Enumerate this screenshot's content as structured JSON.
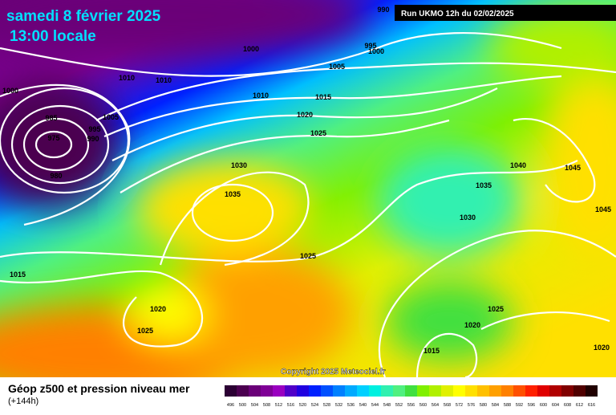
{
  "header": {
    "date": "samedi 8 février 2025",
    "time": "13:00 locale",
    "run": "Run UKMO 12h du 02/02/2025"
  },
  "copyright": "Copyright 2025 Meteociel.fr",
  "footer": {
    "title": "Géop z500 et pression niveau mer",
    "lead": "(+144h)"
  },
  "isobar_labels": [
    990,
    995,
    1000,
    1000,
    1005,
    1010,
    1010,
    1000,
    1010,
    1015,
    985,
    1005,
    1020,
    995,
    975,
    990,
    1025,
    980,
    1030,
    1040,
    1045,
    1035,
    1035,
    1045,
    1030,
    1025,
    1015,
    1020,
    1025,
    1020,
    1025,
    1015,
    1020
  ],
  "scale": {
    "values": [
      496,
      500,
      504,
      508,
      512,
      516,
      520,
      524,
      528,
      532,
      536,
      540,
      544,
      548,
      552,
      556,
      560,
      564,
      568,
      572,
      576,
      580,
      584,
      588,
      592,
      596,
      600,
      604,
      608,
      612,
      616
    ],
    "colors": [
      "#2b0033",
      "#4b0050",
      "#6a0078",
      "#7f0096",
      "#9a00c0",
      "#5000c8",
      "#2000e0",
      "#0020ff",
      "#0050ff",
      "#0080ff",
      "#00aaff",
      "#00d0ff",
      "#00f0e0",
      "#30f0b0",
      "#50f080",
      "#40e040",
      "#80f000",
      "#b0f000",
      "#e0f000",
      "#ffff00",
      "#ffe000",
      "#ffc000",
      "#ffa000",
      "#ff8000",
      "#ff5000",
      "#ff2000",
      "#e00000",
      "#b00000",
      "#800000",
      "#500000",
      "#200000"
    ]
  }
}
